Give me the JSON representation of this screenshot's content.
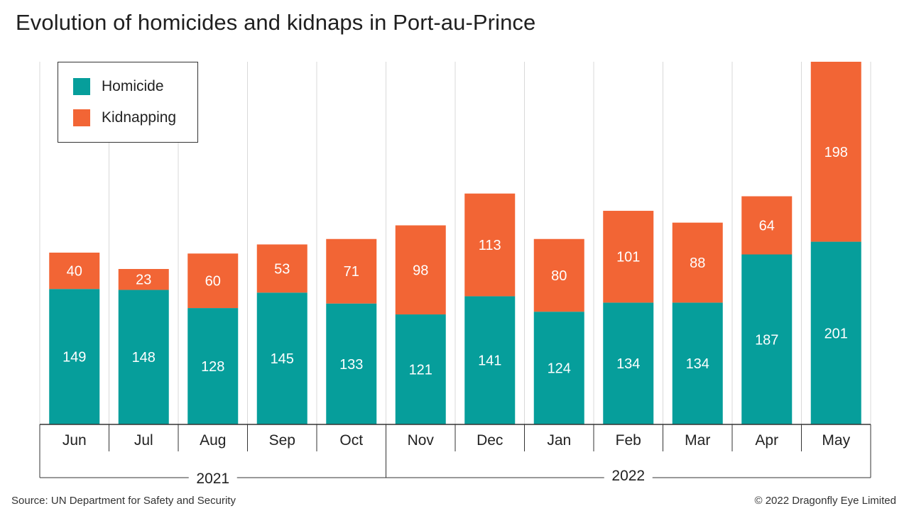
{
  "title": "Evolution of homicides and kidnaps in Port-au-Prince",
  "source": "Source: UN Department for Safety and Security",
  "copyright": "© 2022 Dragonfly Eye Limited",
  "colors": {
    "homicide": "#069e9b",
    "kidnapping": "#f26535",
    "grid": "#d9d9d9",
    "axis": "#333333"
  },
  "chart_data": {
    "type": "bar",
    "stacked": true,
    "title": "Evolution of homicides and kidnaps in Port-au-Prince",
    "categories": [
      "Jun",
      "Jul",
      "Aug",
      "Sep",
      "Oct",
      "Nov",
      "Dec",
      "Jan",
      "Feb",
      "Mar",
      "Apr",
      "May"
    ],
    "year_groups": [
      {
        "label": "2021",
        "categories": [
          "Jun",
          "Jul",
          "Aug",
          "Sep",
          "Oct"
        ]
      },
      {
        "label": "2022",
        "categories": [
          "Nov",
          "Dec",
          "Jan",
          "Feb",
          "Mar",
          "Apr",
          "May"
        ]
      }
    ],
    "series": [
      {
        "name": "Homicide",
        "values": [
          149,
          148,
          128,
          145,
          133,
          121,
          141,
          124,
          134,
          134,
          187,
          201
        ]
      },
      {
        "name": "Kidnapping",
        "values": [
          40,
          23,
          60,
          53,
          71,
          98,
          113,
          80,
          101,
          88,
          64,
          198
        ]
      }
    ],
    "ylim": [
      0,
      399
    ],
    "legend_position": "top-left",
    "grid": "vertical"
  }
}
